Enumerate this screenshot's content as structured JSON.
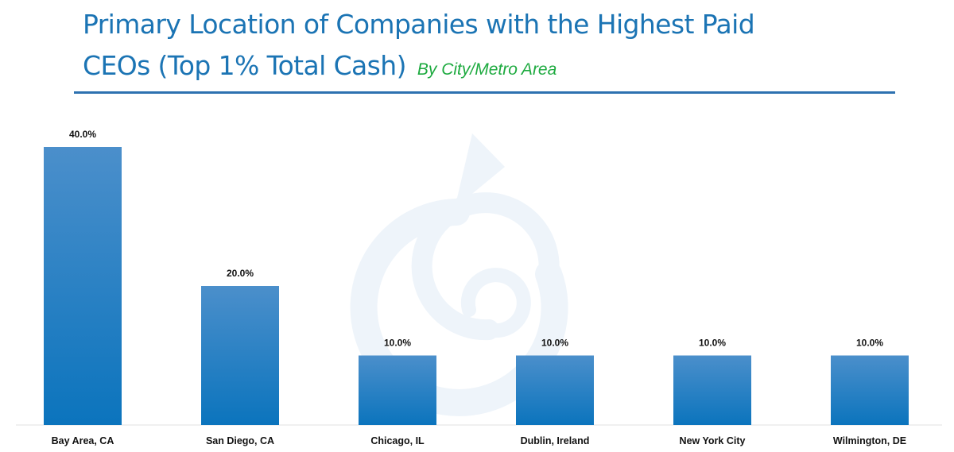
{
  "header": {
    "title_line1": "Primary Location of Companies with the Highest Paid",
    "title_line2": "CEOs (Top 1% Total Cash)",
    "subtitle": "By City/Metro Area"
  },
  "colors": {
    "title": "#1b74b4",
    "subtitle": "#1daa3f",
    "bar_top": "#4b8fcb",
    "bar_bottom": "#0b74bd",
    "rule": "#2d71b0"
  },
  "chart_data": {
    "type": "bar",
    "title": "Primary Location of Companies with the Highest Paid CEOs (Top 1% Total Cash)",
    "subtitle": "By City/Metro Area",
    "categories": [
      "Bay Area, CA",
      "San Diego, CA",
      "Chicago, IL",
      "Dublin, Ireland",
      "New York City",
      "Wilmington, DE"
    ],
    "values": [
      40.0,
      20.0,
      10.0,
      10.0,
      10.0,
      10.0
    ],
    "data_labels": [
      "40.0%",
      "20.0%",
      "10.0%",
      "10.0%",
      "10.0%",
      "10.0%"
    ],
    "xlabel": "",
    "ylabel": "",
    "ylim": [
      0,
      40
    ],
    "grid": false,
    "legend": "none"
  }
}
